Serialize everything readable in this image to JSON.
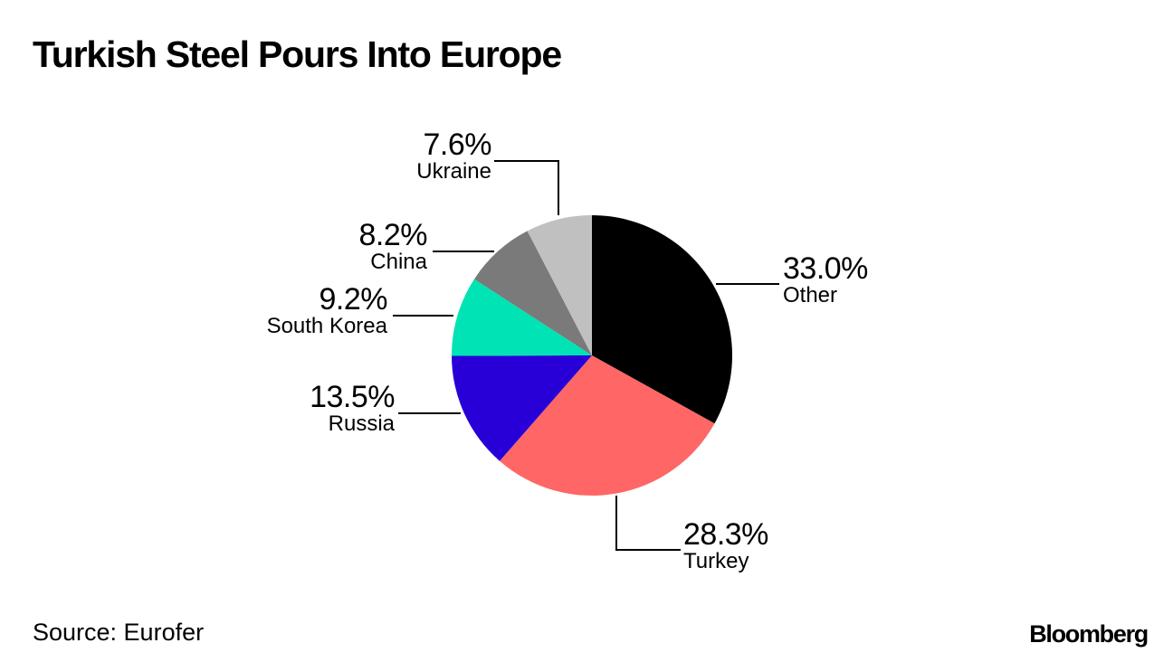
{
  "header": {
    "title": "Turkish Steel Pours Into Europe"
  },
  "footer": {
    "source": "Source: Eurofer",
    "brand": "Bloomberg"
  },
  "labels": {
    "other": {
      "pct": "33.0%",
      "name": "Other"
    },
    "turkey": {
      "pct": "28.3%",
      "name": "Turkey"
    },
    "russia": {
      "pct": "13.5%",
      "name": "Russia"
    },
    "korea": {
      "pct": "9.2%",
      "name": "South Korea"
    },
    "china": {
      "pct": "8.2%",
      "name": "China"
    },
    "ukraine": {
      "pct": "7.6%",
      "name": "Ukraine"
    }
  },
  "chart_data": {
    "type": "pie",
    "title": "Turkish Steel Pours Into Europe",
    "categories": [
      "Other",
      "Turkey",
      "Russia",
      "South Korea",
      "China",
      "Ukraine"
    ],
    "values": [
      33.0,
      28.3,
      13.5,
      9.2,
      8.2,
      7.6
    ],
    "colors": [
      "#000000",
      "#ff6666",
      "#2800d7",
      "#00e3b4",
      "#7a7a7a",
      "#c0c0c0"
    ],
    "start_angle": "12 o'clock",
    "direction": "clockwise",
    "unit": "%",
    "source": "Source: Eurofer",
    "legend": "none (direct labels with leader lines)"
  }
}
